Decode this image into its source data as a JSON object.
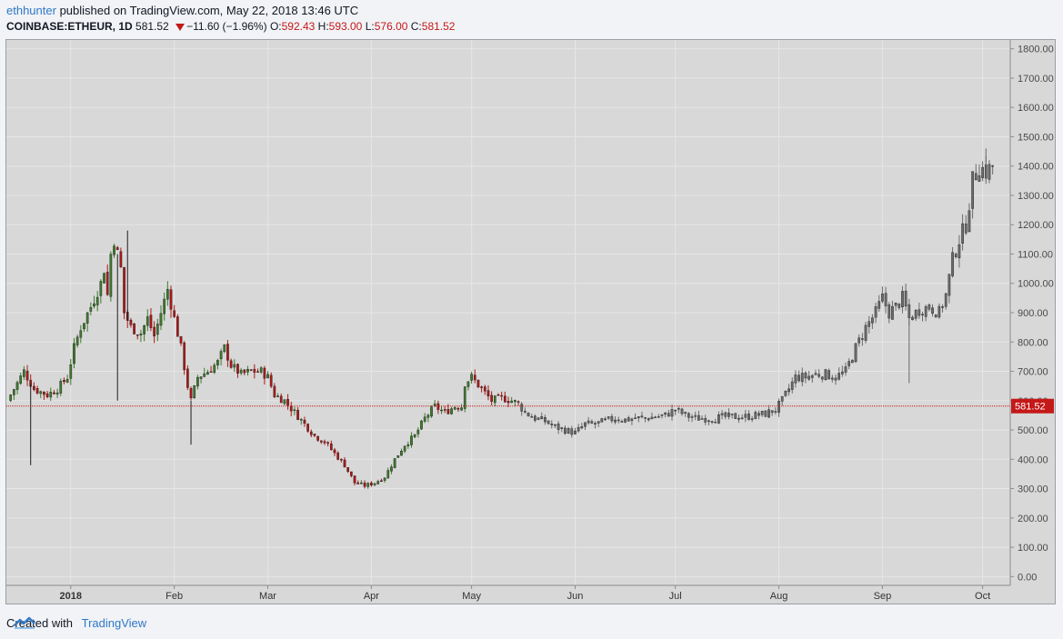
{
  "header": {
    "author": "ethhunter",
    "published_text": "published on TradingView.com, May 22, 2018 13:46 UTC",
    "symbol": "COINBASE:ETHEUR, 1D",
    "last": "581.52",
    "change": "−11.60 (−1.96%)",
    "o_label": "O:",
    "o_value": "592.43",
    "h_label": "H:",
    "h_value": "593.00",
    "l_label": "L:",
    "l_value": "576.00",
    "c_label": "C:",
    "c_value": "581.52"
  },
  "footer": {
    "created_with": "Created with",
    "brand": "TradingView"
  },
  "colors": {
    "up": "#3e7a2c",
    "down": "#b01717",
    "ghost": "#6b6b6b",
    "grid": "#e6e6e6",
    "price_line": "#c51818",
    "background": "#d8d8d8"
  },
  "chart_data": {
    "type": "candlestick",
    "ylim": [
      -30,
      1830
    ],
    "y_ticks": [
      "0.00",
      "100.00",
      "200.00",
      "300.00",
      "400.00",
      "500.00",
      "600.00",
      "700.00",
      "800.00",
      "900.00",
      "1000.00",
      "1100.00",
      "1200.00",
      "1300.00",
      "1400.00",
      "1500.00",
      "1600.00",
      "1700.00",
      "1800.00"
    ],
    "x_ticks": [
      {
        "label": "2018",
        "day": 19,
        "bold": true
      },
      {
        "label": "Feb",
        "day": 50
      },
      {
        "label": "Mar",
        "day": 78
      },
      {
        "label": "Apr",
        "day": 109
      },
      {
        "label": "May",
        "day": 139
      },
      {
        "label": "Jun",
        "day": 170
      },
      {
        "label": "Jul",
        "day": 200
      },
      {
        "label": "Aug",
        "day": 231
      },
      {
        "label": "Sep",
        "day": 262
      },
      {
        "label": "Oct",
        "day": 292
      }
    ],
    "x_domain": [
      0,
      300
    ],
    "last_price": 581.52,
    "last_price_label": "581.52",
    "price_anchors": [
      [
        0,
        600
      ],
      [
        3,
        660
      ],
      [
        5,
        700
      ],
      [
        8,
        640
      ],
      [
        12,
        620
      ],
      [
        15,
        640
      ],
      [
        18,
        680
      ],
      [
        20,
        780
      ],
      [
        22,
        850
      ],
      [
        25,
        920
      ],
      [
        28,
        1000
      ],
      [
        29,
        1050
      ],
      [
        30,
        960
      ],
      [
        31,
        1100
      ],
      [
        32,
        1150
      ],
      [
        34,
        1050
      ],
      [
        35,
        900
      ],
      [
        37,
        850
      ],
      [
        40,
        830
      ],
      [
        42,
        880
      ],
      [
        44,
        820
      ],
      [
        46,
        900
      ],
      [
        48,
        980
      ],
      [
        50,
        880
      ],
      [
        52,
        780
      ],
      [
        54,
        650
      ],
      [
        55,
        600
      ],
      [
        57,
        680
      ],
      [
        60,
        700
      ],
      [
        63,
        730
      ],
      [
        65,
        780
      ],
      [
        67,
        720
      ],
      [
        70,
        690
      ],
      [
        73,
        700
      ],
      [
        76,
        700
      ],
      [
        78,
        680
      ],
      [
        80,
        620
      ],
      [
        83,
        600
      ],
      [
        86,
        560
      ],
      [
        89,
        520
      ],
      [
        92,
        480
      ],
      [
        95,
        460
      ],
      [
        98,
        420
      ],
      [
        101,
        380
      ],
      [
        104,
        320
      ],
      [
        107,
        310
      ],
      [
        110,
        320
      ],
      [
        113,
        340
      ],
      [
        116,
        400
      ],
      [
        119,
        450
      ],
      [
        122,
        480
      ],
      [
        125,
        540
      ],
      [
        128,
        580
      ],
      [
        131,
        560
      ],
      [
        134,
        580
      ],
      [
        136,
        580
      ],
      [
        137,
        660
      ],
      [
        139,
        680
      ],
      [
        142,
        640
      ],
      [
        145,
        600
      ],
      [
        148,
        610
      ],
      [
        151,
        600
      ],
      [
        153,
        590
      ]
    ],
    "ghost_anchors": [
      [
        153,
        590
      ],
      [
        155,
        560
      ],
      [
        158,
        540
      ],
      [
        161,
        530
      ],
      [
        164,
        510
      ],
      [
        167,
        500
      ],
      [
        170,
        490
      ],
      [
        173,
        520
      ],
      [
        176,
        520
      ],
      [
        179,
        530
      ],
      [
        182,
        540
      ],
      [
        185,
        535
      ],
      [
        188,
        540
      ],
      [
        191,
        540
      ],
      [
        194,
        545
      ],
      [
        197,
        550
      ],
      [
        200,
        570
      ],
      [
        203,
        550
      ],
      [
        206,
        540
      ],
      [
        209,
        540
      ],
      [
        212,
        540
      ],
      [
        215,
        545
      ],
      [
        218,
        545
      ],
      [
        221,
        545
      ],
      [
        224,
        550
      ],
      [
        227,
        555
      ],
      [
        230,
        570
      ],
      [
        232,
        600
      ],
      [
        234,
        640
      ],
      [
        236,
        680
      ],
      [
        239,
        680
      ],
      [
        242,
        690
      ],
      [
        245,
        690
      ],
      [
        248,
        680
      ],
      [
        251,
        700
      ],
      [
        254,
        780
      ],
      [
        257,
        850
      ],
      [
        260,
        900
      ],
      [
        262,
        950
      ],
      [
        264,
        900
      ],
      [
        266,
        920
      ],
      [
        268,
        950
      ],
      [
        270,
        880
      ],
      [
        273,
        910
      ],
      [
        276,
        920
      ],
      [
        279,
        900
      ],
      [
        281,
        960
      ],
      [
        283,
        1080
      ],
      [
        285,
        1150
      ],
      [
        287,
        1200
      ],
      [
        289,
        1350
      ],
      [
        291,
        1400
      ],
      [
        293,
        1380
      ],
      [
        295,
        1400
      ]
    ]
  }
}
